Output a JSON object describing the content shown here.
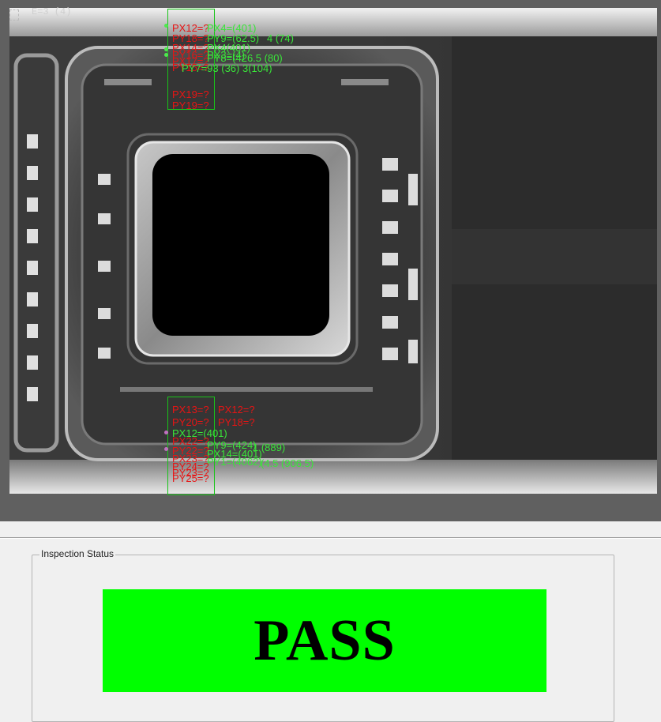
{
  "viewer": {
    "frame_label": "E=3 (4)",
    "top_overlay": {
      "red_lines": [
        "PX12=?",
        "PY18=?",
        "PX14=?",
        "PY16=?",
        "PX17=?",
        "PY15=?",
        "PY17=?",
        "PX19=?",
        "PY19=?"
      ],
      "green_lines": [
        "PX4=(401)",
        "PY9=(62.5)",
        "4 (74)",
        "PX4(401)",
        "PX3=(4)",
        "PY8=(426.5 (80)",
        "PY7=93 (36) 3(104)"
      ]
    },
    "bottom_overlay": {
      "red_lines": [
        "PX13=?",
        "PX12=?",
        "PY20=?",
        "PY18=?",
        "PX22=?",
        "PY22=?",
        "PX23=?",
        "PY24=?",
        "PY23=?",
        "PY25=?"
      ],
      "green_lines": [
        "PX12=(401)",
        "PY9=(424)",
        "1 (889)",
        "PX14=(401)",
        "PY1=(4062)",
        "(4.5 (906.5)"
      ]
    }
  },
  "inspection": {
    "group_title": "Inspection Status",
    "status": "PASS",
    "status_color": "#00ff00"
  }
}
